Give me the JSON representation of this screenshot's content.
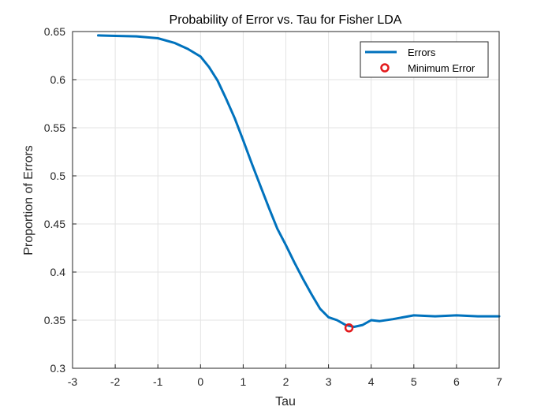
{
  "chart_data": {
    "type": "line",
    "title": "Probability of Error vs. Tau for Fisher LDA",
    "xlabel": "Tau",
    "ylabel": "Proportion of Errors",
    "xlim": [
      -3,
      7
    ],
    "ylim": [
      0.3,
      0.65
    ],
    "xticks": [
      "-3",
      "-2",
      "-1",
      "0",
      "1",
      "2",
      "3",
      "4",
      "5",
      "6",
      "7"
    ],
    "yticks": [
      "0.3",
      "0.35",
      "0.4",
      "0.45",
      "0.5",
      "0.55",
      "0.6",
      "0.65"
    ],
    "grid": true,
    "legend_position": "top-right",
    "series": [
      {
        "name": "Errors",
        "color": "#0072BD",
        "x": [
          -2.4,
          -2.0,
          -1.5,
          -1.0,
          -0.6,
          -0.3,
          0.0,
          0.2,
          0.4,
          0.6,
          0.8,
          1.0,
          1.2,
          1.4,
          1.6,
          1.8,
          2.0,
          2.2,
          2.4,
          2.6,
          2.8,
          3.0,
          3.2,
          3.4,
          3.6,
          3.8,
          4.0,
          4.2,
          4.5,
          5.0,
          5.5,
          6.0,
          6.5,
          7.0
        ],
        "y": [
          0.646,
          0.6455,
          0.645,
          0.643,
          0.638,
          0.632,
          0.624,
          0.613,
          0.599,
          0.58,
          0.56,
          0.537,
          0.513,
          0.49,
          0.467,
          0.445,
          0.428,
          0.41,
          0.393,
          0.377,
          0.362,
          0.353,
          0.35,
          0.345,
          0.343,
          0.345,
          0.35,
          0.349,
          0.351,
          0.355,
          0.354,
          0.355,
          0.354,
          0.354
        ]
      },
      {
        "name": "Minimum Error",
        "marker": "circle",
        "color": "#e31a1c",
        "x": [
          3.48
        ],
        "y": [
          0.342
        ]
      }
    ]
  }
}
